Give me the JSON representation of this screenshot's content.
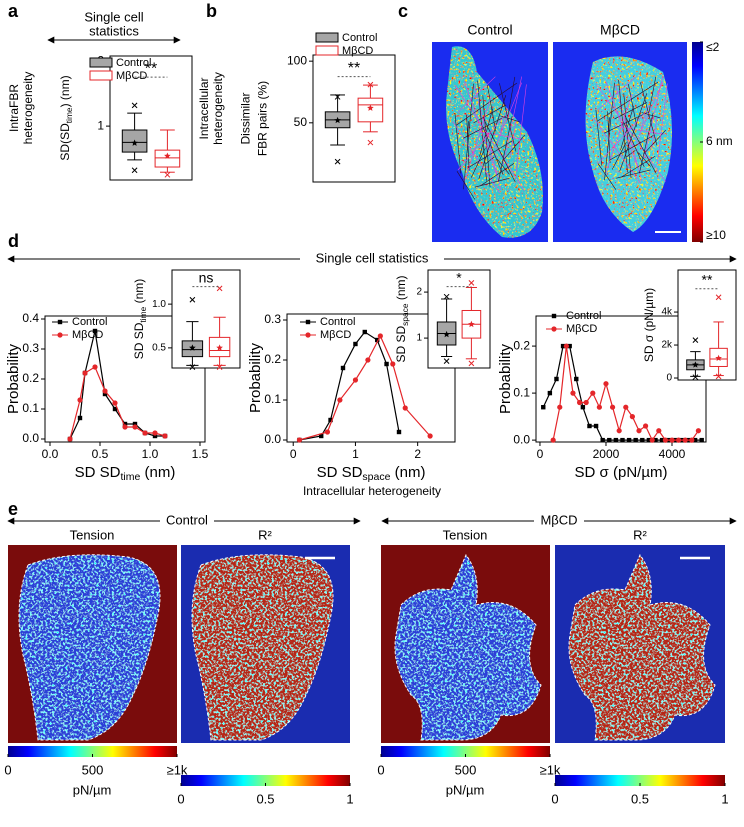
{
  "figure": {
    "panel_labels": [
      "a",
      "b",
      "c",
      "d",
      "e"
    ],
    "a_header": [
      "Single cell",
      "statistics"
    ],
    "c": {
      "titles": [
        "Control",
        "MβCD"
      ],
      "colorbar": {
        "lim": [
          2,
          10
        ],
        "ticks": [
          {
            "value": 2,
            "label": "≤2"
          },
          {
            "value": 6,
            "label": "6  nm"
          },
          {
            "value": 10,
            "label": "≥10"
          }
        ]
      }
    },
    "d_header": "Single cell statistics",
    "d_footer": "Intracellular heterogeneity",
    "e": {
      "groups": [
        "Control",
        "MβCD"
      ],
      "panels": [
        "Tension",
        "R²"
      ],
      "tension_colorbar": {
        "lim": [
          0,
          1000
        ],
        "ticks": [
          0,
          500,
          {
            "value": 1000,
            "label": "≥1k"
          }
        ],
        "unit": "pN/µm"
      },
      "r2_colorbar": {
        "lim": [
          0,
          1
        ],
        "ticks": [
          0,
          0.5,
          1
        ]
      }
    }
  },
  "chart_data": [
    {
      "type": "box",
      "ylabel_outer": [
        [
          "IntraFBR"
        ],
        [
          "heterogeneity"
        ]
      ],
      "ylabel": [
        [
          "SD(SD",
          "time",
          ") (nm)"
        ]
      ],
      "ylim": [
        0.17,
        2.08
      ],
      "yticks": [
        1,
        2
      ],
      "significance": "**",
      "legend": true,
      "series": [
        {
          "name": "Control",
          "color": "#000000",
          "fill": "#a6a6a6",
          "whisker_low": 0.48,
          "q1": 0.6,
          "median": 0.75,
          "q3": 0.94,
          "whisker_high": 1.2,
          "mean": 0.74,
          "min": 0.32,
          "max": 1.32
        },
        {
          "name": "MβCD",
          "color": "#e4262a",
          "fill": "#ffffff",
          "whisker_low": 0.29,
          "q1": 0.37,
          "median": 0.51,
          "q3": 0.63,
          "whisker_high": 0.94,
          "mean": 0.54,
          "min": 0.25
        }
      ]
    },
    {
      "type": "box",
      "ylabel_outer": [
        [
          "Intracellular"
        ],
        [
          "heterogeneity"
        ]
      ],
      "ylabel": [
        [
          "Dissimilar"
        ],
        [
          "FBR pairs (%)"
        ]
      ],
      "ylim": [
        2,
        105
      ],
      "yticks": [
        50,
        100
      ],
      "significance": "**",
      "legend": true,
      "series": [
        {
          "name": "Control",
          "color": "#000000",
          "fill": "#a6a6a6",
          "whisker_low": 32,
          "q1": 46,
          "median": 52.4,
          "q3": 58.9,
          "whisker_high": 72.6,
          "mean": 52,
          "min": 18.5,
          "max": 71
        },
        {
          "name": "MβCD",
          "color": "#e4262a",
          "fill": "#ffffff",
          "whisker_low": 42.7,
          "q1": 50.8,
          "median": 64.5,
          "q3": 70,
          "whisker_high": 80.6,
          "mean": 62,
          "min": 34,
          "max": 81
        }
      ]
    },
    {
      "type": "line",
      "ylabel": [
        [
          "Probability"
        ]
      ],
      "xlabel": [
        [
          "SD SD",
          "time",
          " (nm)"
        ]
      ],
      "xlim": [
        -0.05,
        1.55
      ],
      "ylim": [
        -0.01,
        0.41
      ],
      "xticks": [
        {
          "value": 0,
          "label": "0.0"
        },
        0.5,
        {
          "value": 1,
          "label": "1.0"
        },
        1.5
      ],
      "yticks": [
        {
          "value": 0,
          "label": "0.0"
        },
        0.1,
        0.2,
        0.3,
        0.4
      ],
      "series": [
        {
          "name": "Control",
          "color": "#000000",
          "marker": "square",
          "x": [
            0.2,
            0.3,
            0.35,
            0.45,
            0.55,
            0.65,
            0.75,
            0.85,
            0.95,
            1.05,
            1.15
          ],
          "values": [
            0,
            0.07,
            0.22,
            0.36,
            0.15,
            0.1,
            0.05,
            0.05,
            0.02,
            0.01,
            0.01
          ]
        },
        {
          "name": "MβCD",
          "color": "#e4262a",
          "marker": "circle",
          "x": [
            0.2,
            0.3,
            0.35,
            0.45,
            0.55,
            0.65,
            0.75,
            0.85,
            0.95,
            1.05,
            1.15
          ],
          "values": [
            0,
            0.13,
            0.22,
            0.24,
            0.16,
            0.12,
            0.04,
            0.04,
            0.02,
            0.02,
            0.01
          ]
        }
      ]
    },
    {
      "type": "box",
      "ylabel": [
        [
          "SD SD",
          "time",
          " (nm)"
        ]
      ],
      "ylim": [
        0.27,
        1.39
      ],
      "yticks": [
        0.5,
        {
          "value": 1,
          "label": "1.0"
        }
      ],
      "significance": "ns",
      "series": [
        {
          "color": "#000000",
          "fill": "#a6a6a6",
          "whisker_low": 0.3,
          "q1": 0.4,
          "median": 0.48,
          "q3": 0.58,
          "whisker_high": 0.8,
          "mean": 0.5,
          "min": 0.28,
          "max": 1.05
        },
        {
          "color": "#e4262a",
          "fill": "#ffffff",
          "whisker_low": 0.3,
          "q1": 0.4,
          "median": 0.47,
          "q3": 0.62,
          "whisker_high": 0.85,
          "mean": 0.5,
          "min": 0.28,
          "max": 1.18
        }
      ]
    },
    {
      "type": "line",
      "ylabel": [
        [
          "Probability"
        ]
      ],
      "xlabel": [
        [
          "SD SD",
          "space",
          " (nm)"
        ]
      ],
      "xlim": [
        -0.1,
        2.6
      ],
      "ylim": [
        -0.005,
        0.315
      ],
      "xticks": [
        0,
        1,
        2
      ],
      "yticks": [
        {
          "value": 0,
          "label": "0.0"
        },
        0.1,
        0.2,
        0.3
      ],
      "series": [
        {
          "name": "Control",
          "color": "#000000",
          "marker": "square",
          "x": [
            0.1,
            0.45,
            0.6,
            0.8,
            1.0,
            1.15,
            1.35,
            1.5,
            1.7
          ],
          "values": [
            0,
            0.01,
            0.05,
            0.18,
            0.24,
            0.27,
            0.25,
            0.19,
            0.02
          ]
        },
        {
          "name": "MβCD",
          "color": "#e4262a",
          "marker": "circle",
          "x": [
            0.1,
            0.55,
            0.75,
            1.0,
            1.2,
            1.4,
            1.6,
            1.8,
            2.2
          ],
          "values": [
            0,
            0.02,
            0.1,
            0.15,
            0.2,
            0.26,
            0.19,
            0.08,
            0.01
          ]
        }
      ]
    },
    {
      "type": "box",
      "ylabel": [
        [
          "SD SD",
          "space",
          " (nm)"
        ]
      ],
      "ylim": [
        0.35,
        2.48
      ],
      "yticks": [
        1,
        2
      ],
      "significance": "*",
      "series": [
        {
          "color": "#000000",
          "fill": "#a6a6a6",
          "whisker_low": 0.6,
          "q1": 0.85,
          "median": 1.1,
          "q3": 1.35,
          "whisker_high": 1.85,
          "mean": 1.08,
          "min": 0.5,
          "max": 1.9
        },
        {
          "color": "#e4262a",
          "fill": "#ffffff",
          "whisker_low": 0.55,
          "q1": 1.0,
          "median": 1.3,
          "q3": 1.6,
          "whisker_high": 2.1,
          "mean": 1.3,
          "min": 0.45,
          "max": 2.2
        }
      ]
    },
    {
      "type": "line",
      "ylabel": [
        [
          "Probability"
        ]
      ],
      "xlabel": [
        [
          "SD σ (pN/µm)"
        ]
      ],
      "xlim": [
        -120,
        5030
      ],
      "ylim": [
        -0.004,
        0.264
      ],
      "xticks": [
        0,
        2000,
        4000
      ],
      "yticks": [
        {
          "value": 0,
          "label": "0.0"
        },
        0.1,
        0.2
      ],
      "series": [
        {
          "name": "Control",
          "color": "#000000",
          "marker": "square",
          "x": [
            100,
            300,
            500,
            700,
            900,
            1100,
            1300,
            1500,
            1700,
            1900,
            2100,
            2300,
            2500,
            2700,
            2900,
            3100,
            3300,
            3500,
            3700,
            3900,
            4100,
            4300,
            4500,
            4700,
            4900
          ],
          "values": [
            0.07,
            0.1,
            0.13,
            0.2,
            0.2,
            0.13,
            0.07,
            0.03,
            0.03,
            0,
            0,
            0,
            0,
            0,
            0,
            0,
            0,
            0,
            0,
            0,
            0,
            0,
            0,
            0,
            0
          ]
        },
        {
          "name": "MβCD",
          "color": "#e4262a",
          "marker": "circle",
          "x": [
            400,
            600,
            800,
            1000,
            1200,
            1400,
            1600,
            1800,
            2000,
            2200,
            2400,
            2600,
            2800,
            3000,
            3200,
            3400,
            3600,
            3800,
            4000,
            4200,
            4400,
            4600,
            4800
          ],
          "values": [
            0,
            0.07,
            0.2,
            0.1,
            0.08,
            0.08,
            0.1,
            0.07,
            0.12,
            0.07,
            0.02,
            0.07,
            0.05,
            0.02,
            0.03,
            0,
            0.02,
            0,
            0,
            0,
            0,
            0,
            0.02
          ]
        }
      ]
    },
    {
      "type": "box",
      "ylabel": [
        [
          "SD σ (pN/µm)"
        ]
      ],
      "ylim": [
        -120,
        6550
      ],
      "yticks": [
        0,
        {
          "value": 2000,
          "label": "2k"
        },
        {
          "value": 4000,
          "label": "4k"
        }
      ],
      "significance": "**",
      "series": [
        {
          "color": "#000000",
          "fill": "#a6a6a6",
          "whisker_low": 100,
          "q1": 500,
          "median": 800,
          "q3": 1100,
          "whisker_high": 1600,
          "mean": 800,
          "min": 50,
          "max": 2300
        },
        {
          "color": "#e4262a",
          "fill": "#ffffff",
          "whisker_low": 150,
          "q1": 700,
          "median": 1150,
          "q3": 1800,
          "whisker_high": 3400,
          "mean": 1200,
          "min": 100,
          "max": 4900
        }
      ]
    }
  ]
}
